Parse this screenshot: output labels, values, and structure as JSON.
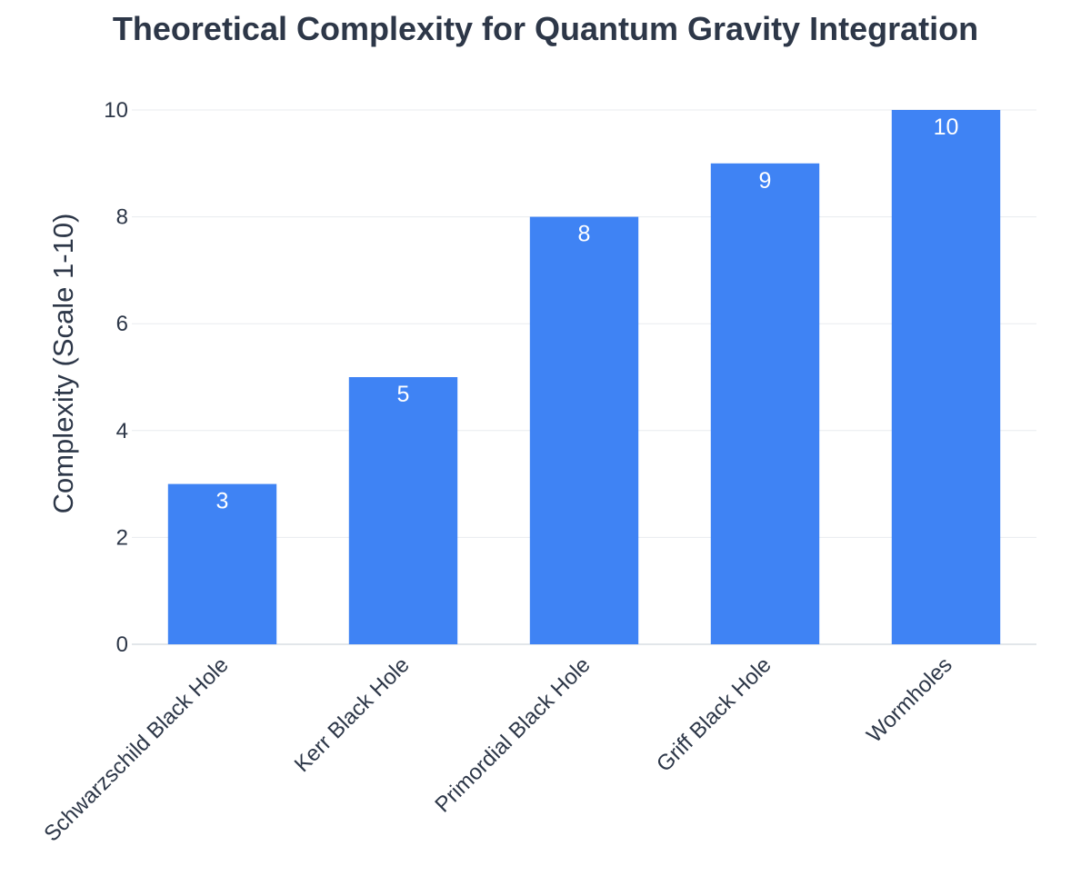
{
  "chart_data": {
    "type": "bar",
    "title": "Theoretical Complexity for Quantum Gravity Integration",
    "xlabel": "",
    "ylabel": "Complexity (Scale 1-10)",
    "categories": [
      "Schwarzschild Black Hole",
      "Kerr Black Hole",
      "Primordial Black Hole",
      "Griff Black Hole",
      "Wormholes"
    ],
    "values": [
      3,
      5,
      8,
      9,
      10
    ],
    "ylim": [
      0,
      10
    ],
    "yticks": [
      0,
      2,
      4,
      6,
      8,
      10
    ],
    "grid": true,
    "legend": "none",
    "data_labels": true,
    "bar_color": "#3f83f4",
    "text_color": "#2d3748"
  }
}
